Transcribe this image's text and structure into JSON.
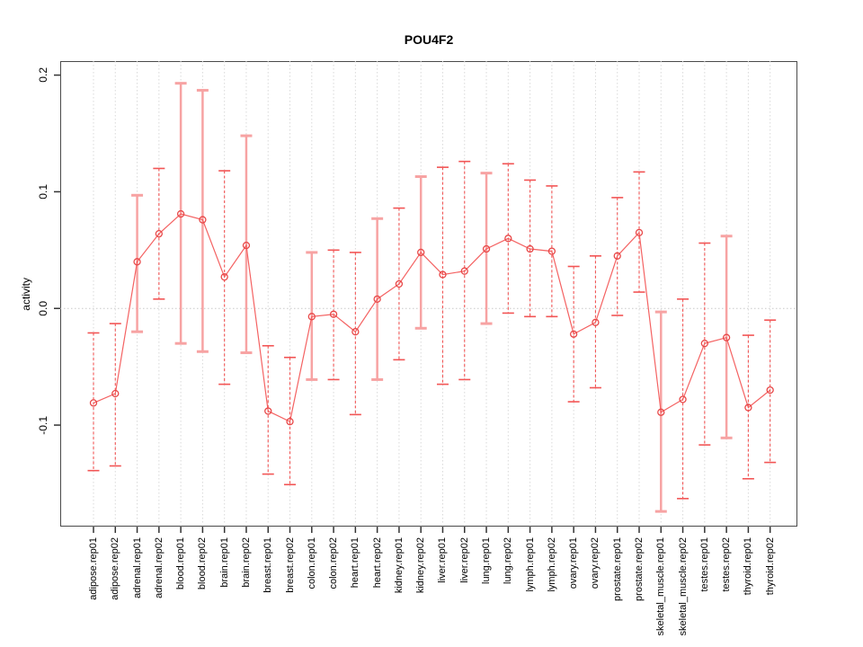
{
  "title": "POU4F2",
  "chart_data": {
    "type": "line",
    "title": "POU4F2",
    "xlabel": "",
    "ylabel": "activity",
    "ylim": [
      -0.187,
      0.212
    ],
    "yticks": [
      0.2,
      0.1,
      0.0,
      -0.1
    ],
    "ytick_labels": [
      "0.2",
      "0.1",
      "0.0",
      "-0.1"
    ],
    "grid": "vertical dotted gridline at every category; dotted horizontal line at y=0",
    "legend": "none",
    "marker": "open-circle",
    "error_bars": true,
    "categories": [
      "adipose.rep01",
      "adipose.rep02",
      "adrenal.rep01",
      "adrenal.rep02",
      "blood.rep01",
      "blood.rep02",
      "brain.rep01",
      "brain.rep02",
      "breast.rep01",
      "breast.rep02",
      "colon.rep01",
      "colon.rep02",
      "heart.rep01",
      "heart.rep02",
      "kidney.rep01",
      "kidney.rep02",
      "liver.rep01",
      "liver.rep02",
      "lung.rep01",
      "lung.rep02",
      "lymph.rep01",
      "lymph.rep02",
      "ovary.rep01",
      "ovary.rep02",
      "prostate.rep01",
      "prostate.rep02",
      "skeletal_muscle.rep01",
      "skeletal_muscle.rep02",
      "testes.rep01",
      "testes.rep02",
      "thyroid.rep01",
      "thyroid.rep02"
    ],
    "series": [
      {
        "name": "activity",
        "values": [
          -0.081,
          -0.073,
          0.04,
          0.064,
          0.081,
          0.076,
          0.027,
          0.054,
          -0.088,
          -0.097,
          -0.007,
          -0.005,
          -0.02,
          0.008,
          0.021,
          0.048,
          0.029,
          0.032,
          0.051,
          0.06,
          0.051,
          0.049,
          -0.022,
          -0.012,
          0.045,
          0.065,
          -0.089,
          -0.078,
          -0.03,
          -0.025,
          -0.085,
          -0.07
        ],
        "err_low": [
          -0.139,
          -0.135,
          -0.02,
          0.008,
          -0.03,
          -0.037,
          -0.065,
          -0.038,
          -0.142,
          -0.151,
          -0.061,
          -0.061,
          -0.091,
          -0.061,
          -0.044,
          -0.017,
          -0.065,
          -0.061,
          -0.013,
          -0.004,
          -0.007,
          -0.007,
          -0.08,
          -0.068,
          -0.006,
          0.014,
          -0.174,
          -0.163,
          -0.117,
          -0.111,
          -0.146,
          -0.132
        ],
        "err_high": [
          -0.021,
          -0.013,
          0.097,
          0.12,
          0.193,
          0.187,
          0.118,
          0.148,
          -0.032,
          -0.042,
          0.048,
          0.05,
          0.048,
          0.077,
          0.086,
          0.113,
          0.121,
          0.126,
          0.116,
          0.124,
          0.11,
          0.105,
          0.036,
          0.045,
          0.095,
          0.117,
          -0.003,
          0.008,
          0.056,
          0.062,
          -0.023,
          -0.01
        ],
        "bar_styles": [
          "dashed",
          "dashed",
          "solid",
          "dashed",
          "solid",
          "solid",
          "dashed",
          "solid",
          "dashed",
          "dashed",
          "solid",
          "dashed",
          "dashed",
          "solid",
          "dashed",
          "solid",
          "dashed",
          "dashed",
          "solid",
          "dashed",
          "dashed",
          "dashed",
          "dashed",
          "dashed",
          "dashed",
          "dashed",
          "solid",
          "dashed",
          "dashed",
          "solid",
          "dashed",
          "dashed"
        ]
      }
    ]
  },
  "colors": {
    "line": "#f46262",
    "marker_stroke": "#e84848",
    "errorbar_dashed": "#f25555",
    "errorbar_solid": "#f7a3a3",
    "grid": "#d9d9d9",
    "zero_line": "#c9c9c9",
    "frame": "#4a4a4a",
    "tick": "#333333",
    "text": "#000000"
  }
}
